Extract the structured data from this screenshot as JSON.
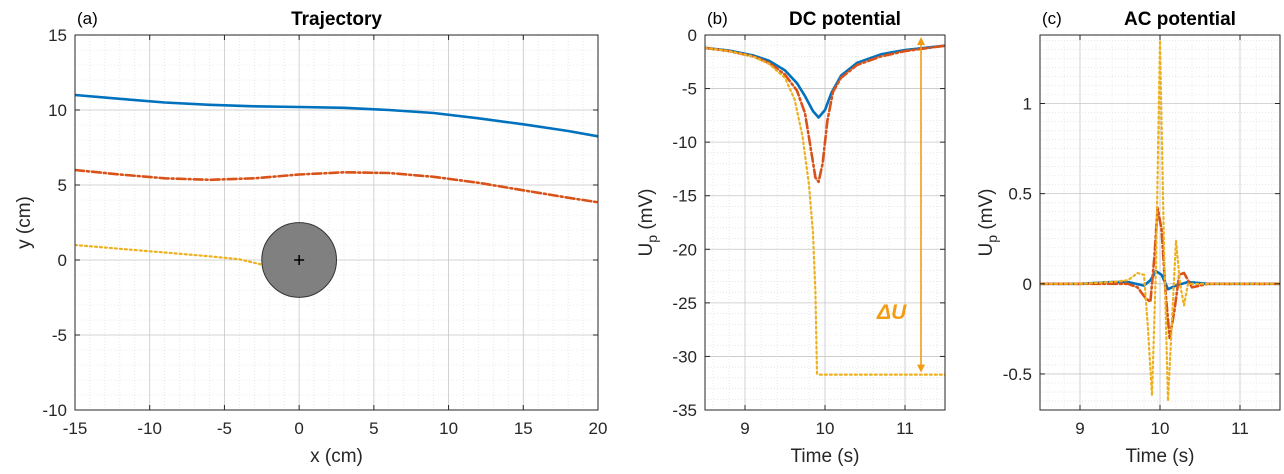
{
  "chart_data": [
    {
      "type": "line",
      "panel_label": "(a)",
      "title": "Trajectory",
      "xlabel": "x (cm)",
      "ylabel": "y (cm)",
      "xlim": [
        -15,
        20
      ],
      "ylim": [
        -10,
        15
      ],
      "xticks": [
        -15,
        -10,
        -5,
        0,
        5,
        10,
        15,
        20
      ],
      "yticks": [
        -10,
        -5,
        0,
        5,
        10,
        15
      ],
      "grid": true,
      "series": [
        {
          "style": "solid",
          "color": "#0072BD",
          "x": [
            -15,
            -12,
            -9,
            -6,
            -3,
            0,
            3,
            6,
            9,
            12,
            15,
            18,
            20
          ],
          "y": [
            11.0,
            10.75,
            10.5,
            10.35,
            10.25,
            10.2,
            10.15,
            10.0,
            9.8,
            9.45,
            9.05,
            8.6,
            8.25
          ]
        },
        {
          "style": "dashdot",
          "color": "#D95319",
          "x": [
            -15,
            -12,
            -9,
            -6,
            -3,
            0,
            3,
            6,
            9,
            12,
            15,
            18,
            20
          ],
          "y": [
            6.0,
            5.7,
            5.45,
            5.35,
            5.45,
            5.7,
            5.85,
            5.8,
            5.55,
            5.15,
            4.65,
            4.15,
            3.85
          ]
        },
        {
          "style": "dotted",
          "color": "#EDB120",
          "x": [
            -15,
            -12,
            -9,
            -6,
            -4,
            -2.5
          ],
          "y": [
            1.0,
            0.75,
            0.5,
            0.25,
            0.05,
            -0.3
          ]
        }
      ],
      "obstacle": {
        "shape": "circle",
        "center": [
          0,
          0
        ],
        "radius": 2.5,
        "fill": "#808080",
        "marker": "+"
      }
    },
    {
      "type": "line",
      "panel_label": "(b)",
      "title": "DC potential",
      "xlabel": "Time (s)",
      "ylabel": "U",
      "ylabel_sub": "p",
      "ylabel_unit": " (mV)",
      "xlim": [
        8.5,
        11.5
      ],
      "ylim": [
        -35,
        0
      ],
      "xticks": [
        9,
        10,
        11
      ],
      "yticks": [
        -35,
        -30,
        -25,
        -20,
        -15,
        -10,
        -5,
        0
      ],
      "grid": true,
      "annotation": {
        "text": "ΔU",
        "x": 11.2,
        "y_top": 0,
        "y_bottom": -31.7,
        "color": "#F39C12"
      },
      "series": [
        {
          "style": "solid",
          "color": "#0072BD",
          "x": [
            8.5,
            8.8,
            9.1,
            9.3,
            9.5,
            9.65,
            9.75,
            9.85,
            9.92,
            10.0,
            10.08,
            10.2,
            10.4,
            10.7,
            11.0,
            11.5
          ],
          "y": [
            -1.2,
            -1.45,
            -1.9,
            -2.4,
            -3.3,
            -4.5,
            -5.7,
            -7.1,
            -7.7,
            -7.0,
            -5.4,
            -3.8,
            -2.6,
            -1.8,
            -1.4,
            -1.0
          ]
        },
        {
          "style": "dashdot",
          "color": "#D95319",
          "x": [
            8.5,
            8.8,
            9.1,
            9.3,
            9.5,
            9.65,
            9.75,
            9.82,
            9.88,
            9.92,
            9.97,
            10.03,
            10.1,
            10.2,
            10.4,
            10.7,
            11.0,
            11.5
          ],
          "y": [
            -1.2,
            -1.5,
            -2.0,
            -2.6,
            -3.7,
            -5.2,
            -7.3,
            -10.5,
            -13.3,
            -13.7,
            -12.0,
            -8.0,
            -5.3,
            -4.0,
            -2.8,
            -2.0,
            -1.5,
            -1.0
          ]
        },
        {
          "style": "dotted",
          "color": "#EDB120",
          "x": [
            8.5,
            8.8,
            9.1,
            9.3,
            9.5,
            9.62,
            9.72,
            9.8,
            9.85,
            9.88,
            9.9,
            9.93,
            11.5
          ],
          "y": [
            -1.2,
            -1.5,
            -2.0,
            -2.7,
            -4.0,
            -6.0,
            -9.5,
            -14.0,
            -18.5,
            -24.0,
            -31.6,
            -31.7,
            -31.7
          ]
        }
      ]
    },
    {
      "type": "line",
      "panel_label": "(c)",
      "title": "AC potential",
      "xlabel": "Time (s)",
      "ylabel": "U",
      "ylabel_sub": "p",
      "ylabel_unit": " (mV)",
      "xlim": [
        8.5,
        11.5
      ],
      "ylim": [
        -0.7,
        1.38
      ],
      "xticks": [
        9,
        10,
        11
      ],
      "yticks": [
        -0.5,
        0,
        0.5,
        1
      ],
      "yticklabels": [
        "-0.5",
        "0",
        "0.5",
        "1"
      ],
      "grid": true,
      "series": [
        {
          "style": "solid",
          "color": "#0072BD",
          "x": [
            8.5,
            9.0,
            9.4,
            9.6,
            9.8,
            9.88,
            9.95,
            10.02,
            10.1,
            10.2,
            10.35,
            10.6,
            11.0,
            11.5
          ],
          "y": [
            0.0,
            0.0,
            0.01,
            0.01,
            -0.01,
            0.02,
            0.07,
            0.05,
            -0.03,
            -0.01,
            0.01,
            0.0,
            0.0,
            0.0
          ]
        },
        {
          "style": "dashdot",
          "color": "#D95319",
          "x": [
            8.5,
            9.0,
            9.4,
            9.6,
            9.72,
            9.82,
            9.88,
            9.93,
            9.97,
            10.02,
            10.07,
            10.12,
            10.18,
            10.24,
            10.3,
            10.4,
            10.6,
            11.0,
            11.5
          ],
          "y": [
            0.0,
            0.0,
            0.0,
            0.0,
            -0.02,
            -0.08,
            -0.1,
            0.15,
            0.42,
            0.3,
            -0.05,
            -0.3,
            -0.15,
            0.05,
            0.06,
            -0.02,
            0.0,
            0.0,
            0.0
          ]
        },
        {
          "style": "dotted",
          "color": "#EDB120",
          "x": [
            8.5,
            9.0,
            9.4,
            9.6,
            9.72,
            9.8,
            9.85,
            9.9,
            9.95,
            10.0,
            10.05,
            10.1,
            10.15,
            10.2,
            10.25,
            10.3,
            10.35,
            10.45,
            10.6,
            11.0,
            11.5
          ],
          "y": [
            0.0,
            0.0,
            0.01,
            0.02,
            0.06,
            0.05,
            -0.25,
            -0.62,
            0.1,
            1.35,
            0.2,
            -0.65,
            -0.2,
            0.24,
            0.0,
            -0.12,
            0.0,
            0.0,
            0.0,
            0.0,
            0.0
          ]
        }
      ]
    }
  ]
}
